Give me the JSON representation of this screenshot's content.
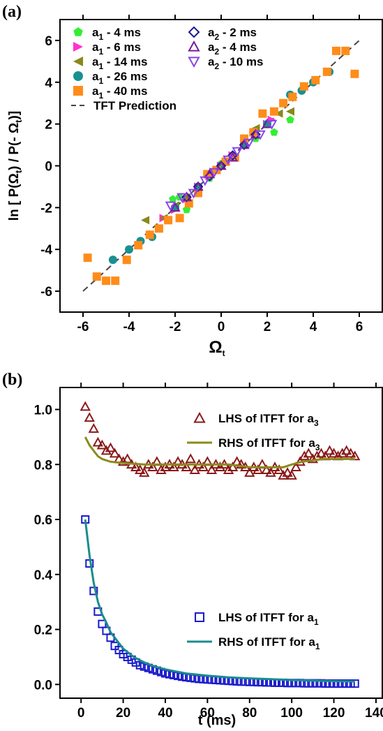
{
  "chart_data": [
    {
      "panel_label": "(a)",
      "type": "scatter",
      "xlabel": "Ω",
      "xlabel_sub": "t",
      "ylabel_parts": [
        {
          "t": "ln [ P(Ω"
        },
        {
          "t": "t",
          "sub": true
        },
        {
          "t": ") / P(- Ω"
        },
        {
          "t": "t",
          "sub": true
        },
        {
          "t": ")]"
        }
      ],
      "xlim": [
        -7,
        7
      ],
      "ylim": [
        -7,
        7
      ],
      "xticks": [
        -6,
        -4,
        -2,
        0,
        2,
        4,
        6
      ],
      "yticks": [
        -6,
        -4,
        -2,
        0,
        2,
        4,
        6
      ],
      "legend_placement": "top-left",
      "series": [
        {
          "name": "a",
          "sub": "1",
          "suffix": " -  4 ms",
          "color": "#33ee33",
          "marker": "pentagon",
          "x": [
            -2.1,
            -1.8,
            -1.5,
            -1.0,
            -0.5,
            0.0,
            0.5,
            1.0,
            1.5,
            2.0,
            2.3,
            3.0
          ],
          "y": [
            -1.6,
            -1.5,
            -2.1,
            -1.0,
            -0.6,
            0.1,
            0.4,
            1.2,
            1.3,
            2.0,
            1.6,
            2.2
          ]
        },
        {
          "name": "a",
          "sub": "1",
          "suffix": " -  6 ms",
          "color": "#ff33cc",
          "marker": "tri-right",
          "x": [
            -2.5,
            -2.0,
            -1.5,
            -1.0,
            -0.5,
            0.0,
            0.5,
            1.0,
            1.5,
            2.0,
            2.2
          ],
          "y": [
            -2.5,
            -2.1,
            -1.6,
            -1.0,
            -0.5,
            0.0,
            0.5,
            1.0,
            1.5,
            2.0,
            2.2
          ]
        },
        {
          "name": "a",
          "sub": "1",
          "suffix": " - 14 ms",
          "color": "#88881a",
          "marker": "tri-left",
          "x": [
            -3.3,
            -2.5,
            -2.0,
            -1.5,
            -1.0,
            -0.5,
            0.0,
            0.5,
            1.0,
            1.5,
            2.5,
            3.0
          ],
          "y": [
            -2.6,
            -2.5,
            -1.9,
            -1.5,
            -1.1,
            -0.3,
            0.0,
            0.4,
            1.2,
            1.8,
            2.5,
            2.6
          ]
        },
        {
          "name": "a",
          "sub": "1",
          "suffix": " - 26 ms",
          "color": "#1a9090",
          "marker": "circle",
          "x": [
            -4.7,
            -4.0,
            -3.5,
            -3.0,
            -2.0,
            -1.0,
            0.0,
            1.0,
            2.0,
            3.0,
            3.5,
            4.0,
            4.7
          ],
          "y": [
            -4.5,
            -4.0,
            -3.6,
            -3.4,
            -2.0,
            -1.0,
            0.0,
            1.0,
            2.0,
            3.4,
            3.6,
            4.0,
            4.5
          ]
        },
        {
          "name": "a",
          "sub": "1",
          "suffix": " - 40 ms",
          "color": "#ff8c1a",
          "marker": "square",
          "x": [
            -5.8,
            -5.4,
            -5.0,
            -4.6,
            -4.1,
            -3.6,
            -3.1,
            -2.7,
            -2.3,
            -1.8,
            -1.4,
            -1.0,
            -0.6,
            -0.2,
            0.2,
            0.6,
            1.0,
            1.4,
            1.8,
            2.3,
            2.7,
            3.1,
            3.6,
            4.1,
            4.6,
            5.0,
            5.4,
            5.8
          ],
          "y": [
            -4.4,
            -5.3,
            -5.5,
            -5.5,
            -4.5,
            -3.8,
            -3.3,
            -3.0,
            -2.6,
            -2.5,
            -1.8,
            -1.3,
            -0.4,
            -0.2,
            0.2,
            0.4,
            1.3,
            1.6,
            2.5,
            2.6,
            3.0,
            3.3,
            3.8,
            4.1,
            4.5,
            5.5,
            5.5,
            4.4
          ]
        },
        {
          "name": "a",
          "sub": "2",
          "suffix": " -  2 ms",
          "color": "#1a1a99",
          "marker": "diamond-open",
          "x": [
            -1.5,
            -1.0,
            -0.5,
            0.0,
            0.5,
            1.0,
            1.5
          ],
          "y": [
            -1.5,
            -1.0,
            -0.5,
            0.0,
            0.5,
            1.0,
            1.5
          ]
        },
        {
          "name": "a",
          "sub": "2",
          "suffix": " -  4 ms",
          "color": "#7a1a99",
          "marker": "tri-up-open",
          "x": [
            -2.0,
            -1.5,
            -1.0,
            -0.5,
            0.0,
            0.5,
            1.0,
            1.5,
            2.0
          ],
          "y": [
            -2.0,
            -1.5,
            -1.0,
            -0.4,
            0.0,
            0.4,
            1.0,
            1.5,
            2.0
          ]
        },
        {
          "name": "a",
          "sub": "2",
          "suffix": " - 10 ms",
          "color": "#8844ee",
          "marker": "tri-down-open",
          "x": [
            -2.2,
            -1.7,
            -1.2,
            -0.7,
            -0.3,
            0.3,
            0.7,
            1.2,
            1.7,
            2.2
          ],
          "y": [
            -1.9,
            -1.5,
            -1.3,
            -0.7,
            -0.3,
            0.3,
            0.7,
            1.1,
            1.5,
            2.0
          ]
        }
      ],
      "reference_line": {
        "name": "TFT Prediction",
        "style": "dashed",
        "color": "#444444",
        "x": [
          -6,
          6
        ],
        "y": [
          -6,
          6
        ]
      }
    },
    {
      "panel_label": "(b)",
      "type": "scatter+line",
      "xlabel": "t (ms)",
      "ylabel": "",
      "xlim": [
        -10,
        143
      ],
      "ylim": [
        -0.05,
        1.08
      ],
      "xticks": [
        0,
        20,
        40,
        60,
        80,
        100,
        120,
        140
      ],
      "yticks": [
        0.0,
        0.2,
        0.4,
        0.6,
        0.8,
        1.0
      ],
      "ytick_labels": [
        "0.0",
        "0.2",
        "0.4",
        "0.6",
        "0.8",
        "1.0"
      ],
      "series": [
        {
          "name": "LHS of ITFT for a",
          "sub": "3",
          "color": "#8b1a1a",
          "marker": "tri-up-open",
          "x": [
            2,
            4,
            6,
            8,
            10,
            12,
            14,
            16,
            18,
            20,
            22,
            24,
            26,
            28,
            30,
            32,
            34,
            36,
            38,
            40,
            42,
            44,
            46,
            48,
            50,
            52,
            54,
            56,
            58,
            60,
            62,
            64,
            66,
            68,
            70,
            72,
            74,
            76,
            78,
            80,
            82,
            84,
            86,
            88,
            90,
            92,
            94,
            96,
            98,
            100,
            102,
            104,
            106,
            108,
            110,
            112,
            114,
            116,
            118,
            120,
            122,
            124,
            126,
            128,
            130
          ],
          "y": [
            1.01,
            0.97,
            0.93,
            0.88,
            0.87,
            0.85,
            0.86,
            0.84,
            0.82,
            0.81,
            0.82,
            0.8,
            0.79,
            0.78,
            0.77,
            0.8,
            0.79,
            0.81,
            0.78,
            0.79,
            0.8,
            0.79,
            0.81,
            0.8,
            0.79,
            0.82,
            0.78,
            0.8,
            0.79,
            0.81,
            0.78,
            0.8,
            0.79,
            0.8,
            0.78,
            0.79,
            0.81,
            0.8,
            0.79,
            0.77,
            0.79,
            0.78,
            0.8,
            0.78,
            0.77,
            0.79,
            0.78,
            0.76,
            0.77,
            0.76,
            0.79,
            0.81,
            0.83,
            0.84,
            0.82,
            0.83,
            0.84,
            0.83,
            0.85,
            0.84,
            0.83,
            0.84,
            0.85,
            0.84,
            0.83
          ]
        },
        {
          "name": "RHS of ITFT for a",
          "sub": "3",
          "color": "#8b8b1a",
          "marker": "line",
          "x": [
            2,
            4,
            6,
            8,
            10,
            14,
            20,
            30,
            40,
            50,
            60,
            70,
            80,
            90,
            96,
            100,
            105,
            110,
            115,
            120,
            125,
            130
          ],
          "y": [
            0.9,
            0.87,
            0.85,
            0.83,
            0.82,
            0.81,
            0.805,
            0.8,
            0.8,
            0.8,
            0.8,
            0.8,
            0.79,
            0.79,
            0.79,
            0.8,
            0.81,
            0.815,
            0.82,
            0.82,
            0.82,
            0.82
          ]
        },
        {
          "name": "LHS of ITFT for a",
          "sub": "1",
          "color": "#1a1acc",
          "marker": "square-open",
          "x": [
            2,
            4,
            6,
            8,
            10,
            12,
            14,
            16,
            18,
            20,
            22,
            24,
            26,
            28,
            30,
            32,
            34,
            36,
            38,
            40,
            42,
            44,
            46,
            48,
            50,
            52,
            54,
            56,
            58,
            60,
            62,
            64,
            66,
            68,
            70,
            72,
            74,
            76,
            78,
            80,
            82,
            84,
            86,
            88,
            90,
            92,
            94,
            96,
            98,
            100,
            102,
            104,
            106,
            108,
            110,
            112,
            114,
            116,
            118,
            120,
            122,
            124,
            126,
            128,
            130
          ],
          "y": [
            0.6,
            0.44,
            0.34,
            0.265,
            0.22,
            0.195,
            0.17,
            0.14,
            0.125,
            0.11,
            0.1,
            0.09,
            0.08,
            0.07,
            0.065,
            0.06,
            0.055,
            0.05,
            0.045,
            0.04,
            0.037,
            0.034,
            0.031,
            0.028,
            0.026,
            0.024,
            0.022,
            0.02,
            0.019,
            0.018,
            0.017,
            0.016,
            0.015,
            0.014,
            0.013,
            0.012,
            0.011,
            0.01,
            0.01,
            0.009,
            0.009,
            0.008,
            0.008,
            0.007,
            0.007,
            0.006,
            0.006,
            0.006,
            0.005,
            0.005,
            0.005,
            0.005,
            0.004,
            0.004,
            0.004,
            0.004,
            0.004,
            0.003,
            0.003,
            0.003,
            0.003,
            0.003,
            0.003,
            0.003,
            0.003
          ]
        },
        {
          "name": "RHS of ITFT for a",
          "sub": "1",
          "color": "#1a8c8c",
          "marker": "line",
          "x": [
            2,
            4,
            6,
            8,
            10,
            12,
            14,
            17,
            20,
            25,
            30,
            35,
            40,
            50,
            60,
            70,
            80,
            90,
            100,
            110,
            120,
            130
          ],
          "y": [
            0.6,
            0.47,
            0.37,
            0.3,
            0.255,
            0.225,
            0.19,
            0.16,
            0.13,
            0.1,
            0.08,
            0.065,
            0.055,
            0.04,
            0.032,
            0.026,
            0.022,
            0.019,
            0.016,
            0.014,
            0.012,
            0.011
          ]
        }
      ]
    }
  ]
}
